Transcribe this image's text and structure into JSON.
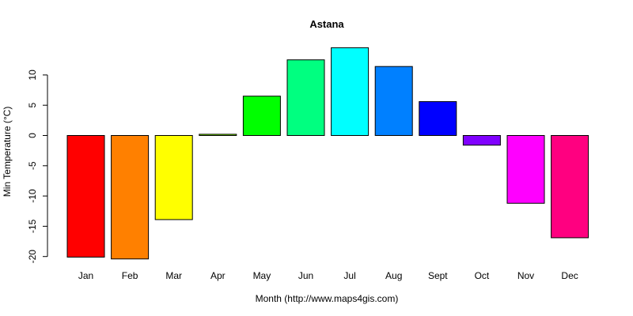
{
  "chart_data": {
    "type": "bar",
    "title": "Astana",
    "xlabel": "Month (http://www.maps4gis.com)",
    "ylabel": "Min Temperature (°C)",
    "categories": [
      "Jan",
      "Feb",
      "Mar",
      "Apr",
      "May",
      "Jun",
      "Jul",
      "Aug",
      "Sept",
      "Oct",
      "Nov",
      "Dec"
    ],
    "values": [
      -20.1,
      -20.4,
      -13.9,
      0.2,
      6.5,
      12.5,
      14.5,
      11.4,
      5.6,
      -1.6,
      -11.2,
      -16.9
    ],
    "colors": [
      "#FF0000",
      "#FF8000",
      "#FFFF00",
      "#80FF00",
      "#00FF00",
      "#00FF80",
      "#00FFFF",
      "#0080FF",
      "#0000FF",
      "#8000FF",
      "#FF00FF",
      "#FF0080"
    ],
    "yticks": [
      -20,
      -15,
      -10,
      -5,
      0,
      5,
      10
    ],
    "ylim": [
      -20.4,
      14.5
    ],
    "grid": false,
    "legend": "none"
  }
}
